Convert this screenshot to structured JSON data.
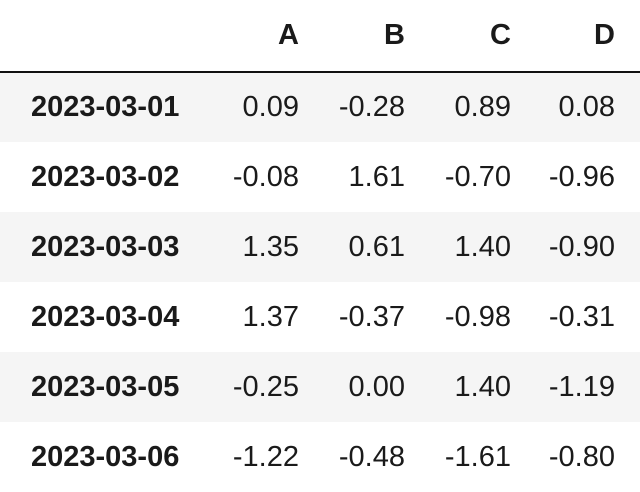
{
  "table": {
    "columns": [
      "A",
      "B",
      "C",
      "D"
    ],
    "rows": [
      {
        "index": "2023-03-01",
        "cells": [
          "0.09",
          "-0.28",
          "0.89",
          "0.08"
        ]
      },
      {
        "index": "2023-03-02",
        "cells": [
          "-0.08",
          "1.61",
          "-0.70",
          "-0.96"
        ]
      },
      {
        "index": "2023-03-03",
        "cells": [
          "1.35",
          "0.61",
          "1.40",
          "-0.90"
        ]
      },
      {
        "index": "2023-03-04",
        "cells": [
          "1.37",
          "-0.37",
          "-0.98",
          "-0.31"
        ]
      },
      {
        "index": "2023-03-05",
        "cells": [
          "-0.25",
          "0.00",
          "1.40",
          "-1.19"
        ]
      },
      {
        "index": "2023-03-06",
        "cells": [
          "-1.22",
          "-0.48",
          "-1.61",
          "-0.80"
        ]
      }
    ]
  }
}
